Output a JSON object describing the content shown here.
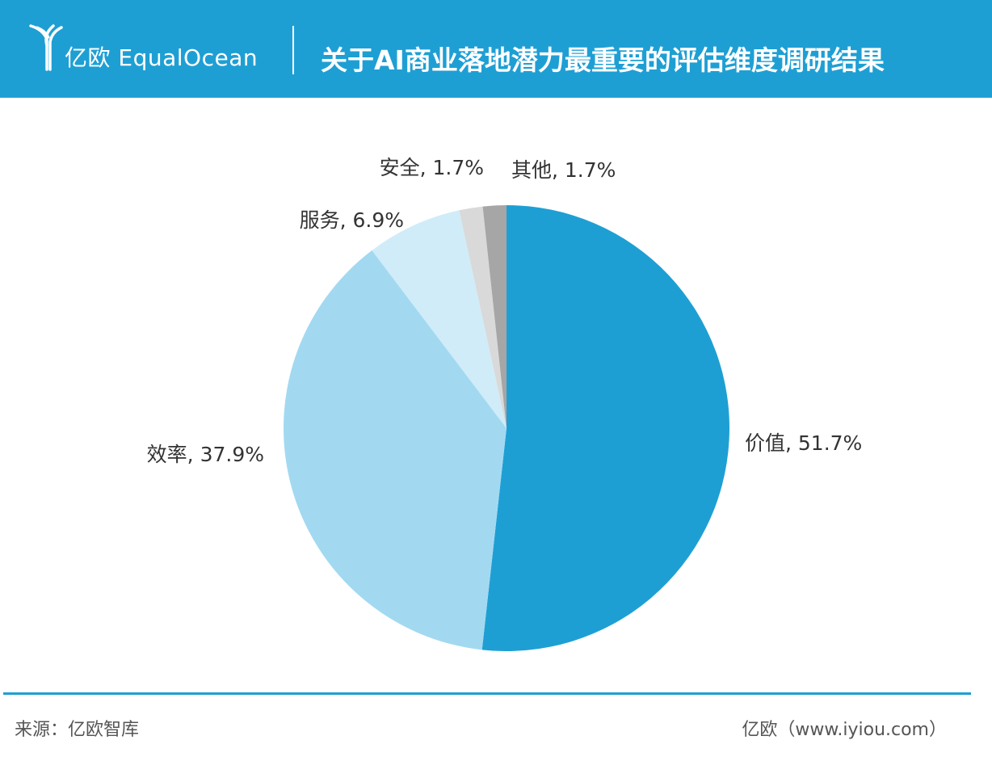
{
  "header": {
    "brand": "亿欧 EqualOcean",
    "title": "关于AI商业落地潜力最重要的评估维度调研结果"
  },
  "colors": {
    "header_bg": "#1e9fd4",
    "footer_rule": "#1e9fd4"
  },
  "chart_data": {
    "type": "pie",
    "labels": [
      "价值",
      "效率",
      "服务",
      "安全",
      "其他"
    ],
    "values": [
      51.7,
      37.9,
      6.9,
      1.7,
      1.7
    ],
    "display_labels": [
      "价值, 51.7%",
      "效率, 37.9%",
      "服务, 6.9%",
      "安全, 1.7%",
      "其他, 1.7%"
    ],
    "colors": [
      "#1e9fd4",
      "#a2d9f1",
      "#d0ecf8",
      "#d9d9d9",
      "#a6a6a6"
    ],
    "start_angle": "12 o'clock",
    "direction": "clockwise"
  },
  "footer": {
    "source": "来源：亿欧智库",
    "site": "亿欧（www.iyiou.com）"
  }
}
